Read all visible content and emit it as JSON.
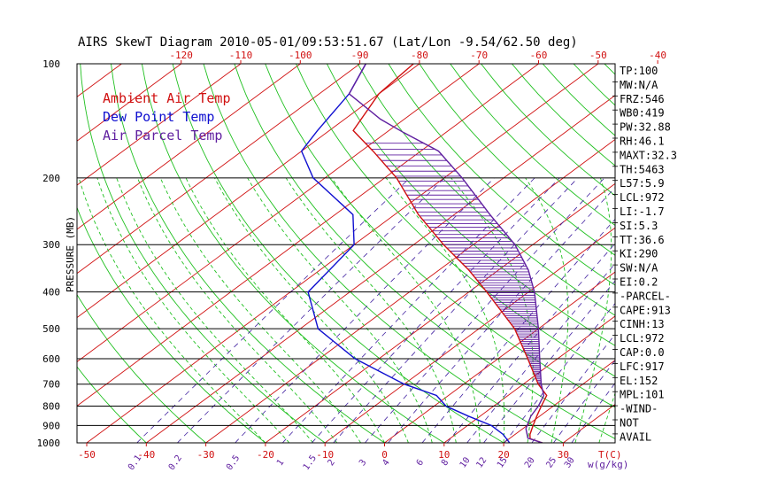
{
  "chart_data": {
    "type": "line",
    "title": "AIRS SkewT Diagram 2010-05-01/09:53:51.67 (Lat/Lon -9.54/62.50 deg)",
    "ylabel": "PRESSURE (MB)",
    "xlabel": "T(C)",
    "mixing_ratio_label": "w(g/kg)",
    "y_scale": "log",
    "ylim": [
      1000,
      100
    ],
    "xlim": [
      -50,
      35
    ],
    "grid": true,
    "legend": {
      "placement": "top-left",
      "entries": [
        {
          "label": "Ambient Air Temp",
          "color": "#d01010"
        },
        {
          "label": "Dew Point Temp",
          "color": "#1010d0"
        },
        {
          "label": "Air Parcel Temp",
          "color": "#6020a0"
        }
      ]
    },
    "pressure_ticks": [
      "100",
      "200",
      "300",
      "400",
      "500",
      "600",
      "700",
      "800",
      "900",
      "1000"
    ],
    "pressure_levels": [
      100,
      200,
      300,
      400,
      500,
      600,
      700,
      800,
      900,
      1000
    ],
    "top_temp_ticks": [
      "-120",
      "-110",
      "-100",
      "-90",
      "-80",
      "-70",
      "-60",
      "-50",
      "-40"
    ],
    "top_temp_values": [
      -120,
      -110,
      -100,
      -90,
      -80,
      -70,
      -60,
      -50,
      -40
    ],
    "bottom_temp_ticks": [
      "-50",
      "-40",
      "-30",
      "-20",
      "-10",
      "0",
      "10",
      "20",
      "30"
    ],
    "bottom_temp_values": [
      -50,
      -40,
      -30,
      -20,
      -10,
      0,
      10,
      20,
      30
    ],
    "mixing_ratio_ticks": [
      "0.1",
      "0.2",
      "0.5",
      "1",
      "1.5",
      "2",
      "3",
      "4",
      "6",
      "8",
      "10",
      "12",
      "15",
      "20",
      "25",
      "30"
    ],
    "mixing_ratio_values": [
      0.1,
      0.2,
      0.5,
      1,
      1.5,
      2,
      3,
      4,
      6,
      8,
      10,
      12,
      15,
      20,
      25,
      30
    ],
    "series": [
      {
        "name": "Ambient Air Temp",
        "color": "#d01010",
        "points": [
          [
            1000,
            26.5
          ],
          [
            975,
            23.5
          ],
          [
            950,
            22.5
          ],
          [
            900,
            21
          ],
          [
            850,
            19.5
          ],
          [
            800,
            18
          ],
          [
            750,
            16.5
          ],
          [
            700,
            12.5
          ],
          [
            600,
            5
          ],
          [
            500,
            -4
          ],
          [
            400,
            -17
          ],
          [
            350,
            -25
          ],
          [
            300,
            -35
          ],
          [
            250,
            -46
          ],
          [
            200,
            -58
          ],
          [
            170,
            -68
          ],
          [
            150,
            -76
          ],
          [
            120,
            -80
          ],
          [
            100,
            -81
          ]
        ]
      },
      {
        "name": "Dew Point Temp",
        "color": "#1010d0",
        "points": [
          [
            1000,
            21
          ],
          [
            950,
            18
          ],
          [
            900,
            14
          ],
          [
            850,
            8
          ],
          [
            800,
            2
          ],
          [
            750,
            -2
          ],
          [
            700,
            -10
          ],
          [
            600,
            -24
          ],
          [
            500,
            -37
          ],
          [
            400,
            -47
          ],
          [
            300,
            -50
          ],
          [
            250,
            -57
          ],
          [
            200,
            -72
          ],
          [
            170,
            -80
          ],
          [
            150,
            -82
          ],
          [
            120,
            -85
          ],
          [
            100,
            -89
          ]
        ]
      },
      {
        "name": "Air Parcel Temp",
        "color": "#6020a0",
        "points": [
          [
            1000,
            26.5
          ],
          [
            972,
            23
          ],
          [
            917,
            20.5
          ],
          [
            850,
            18.5
          ],
          [
            800,
            17.5
          ],
          [
            750,
            16
          ],
          [
            700,
            13
          ],
          [
            600,
            7
          ],
          [
            500,
            0
          ],
          [
            400,
            -9
          ],
          [
            350,
            -15
          ],
          [
            300,
            -23
          ],
          [
            250,
            -34
          ],
          [
            200,
            -47
          ],
          [
            170,
            -57
          ],
          [
            152,
            -67
          ],
          [
            140,
            -74
          ],
          [
            120,
            -85
          ],
          [
            100,
            -89
          ]
        ]
      }
    ]
  },
  "indices": [
    "TP:100",
    "MW:N/A",
    "FRZ:546",
    "WB0:419",
    "PW:32.88",
    "RH:46.1",
    "MAXT:32.3",
    "TH:5463",
    "L57:5.9",
    "LCL:972",
    "LI:-1.7",
    "SI:5.3",
    "TT:36.6",
    "KI:290",
    "SW:N/A",
    "EI:0.2",
    "-PARCEL-",
    "CAPE:913",
    "CINH:13",
    "LCL:972",
    "CAP:0.0",
    "LFC:917",
    "EL:152",
    "MPL:101",
    "-WIND-",
    "NOT",
    "AVAIL"
  ],
  "colors": {
    "background": "#ffffff",
    "frame": "#000000",
    "isotherm": "#d01010",
    "dry_adiabat": "#20c020",
    "moist_adiabat": "#20c020",
    "mixing_ratio": "#4020a0",
    "tick_labels": "#d01010",
    "mixing_labels": "#6020a0"
  }
}
